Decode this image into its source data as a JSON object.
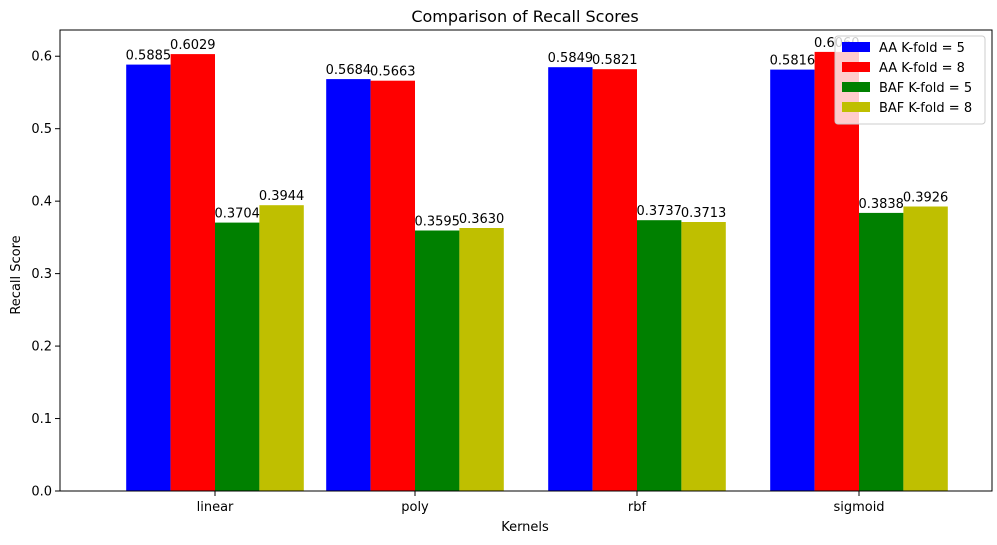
{
  "chart_data": {
    "type": "bar",
    "title": "Comparison of Recall Scores",
    "xlabel": "Kernels",
    "ylabel": "Recall Score",
    "categories": [
      "linear",
      "poly",
      "rbf",
      "sigmoid"
    ],
    "series": [
      {
        "name": "AA K-fold = 5",
        "color": "#0000ff",
        "values": [
          0.5885,
          0.5684,
          0.5849,
          0.5816
        ],
        "labels": [
          "0.5885",
          "0.5684",
          "0.5849",
          "0.5816"
        ]
      },
      {
        "name": "AA K-fold = 8",
        "color": "#ff0000",
        "values": [
          0.6029,
          0.5663,
          0.5821,
          0.606
        ],
        "labels": [
          "0.6029",
          "0.5663",
          "0.5821",
          "0.6060"
        ]
      },
      {
        "name": "BAF K-fold = 5",
        "color": "#008000",
        "values": [
          0.3704,
          0.3595,
          0.3737,
          0.3838
        ],
        "labels": [
          "0.3704",
          "0.3595",
          "0.3737",
          "0.3838"
        ]
      },
      {
        "name": "BAF K-fold = 8",
        "color": "#bfbf00",
        "values": [
          0.3944,
          0.363,
          0.3713,
          0.3926
        ],
        "labels": [
          "0.3944",
          "0.3630",
          "0.3713",
          "0.3926"
        ]
      }
    ],
    "yticks": [
      "0.0",
      "0.1",
      "0.2",
      "0.3",
      "0.4",
      "0.5",
      "0.6"
    ],
    "ylim": [
      0,
      0.6362
    ],
    "grid": false,
    "legend_position": "top-right"
  }
}
